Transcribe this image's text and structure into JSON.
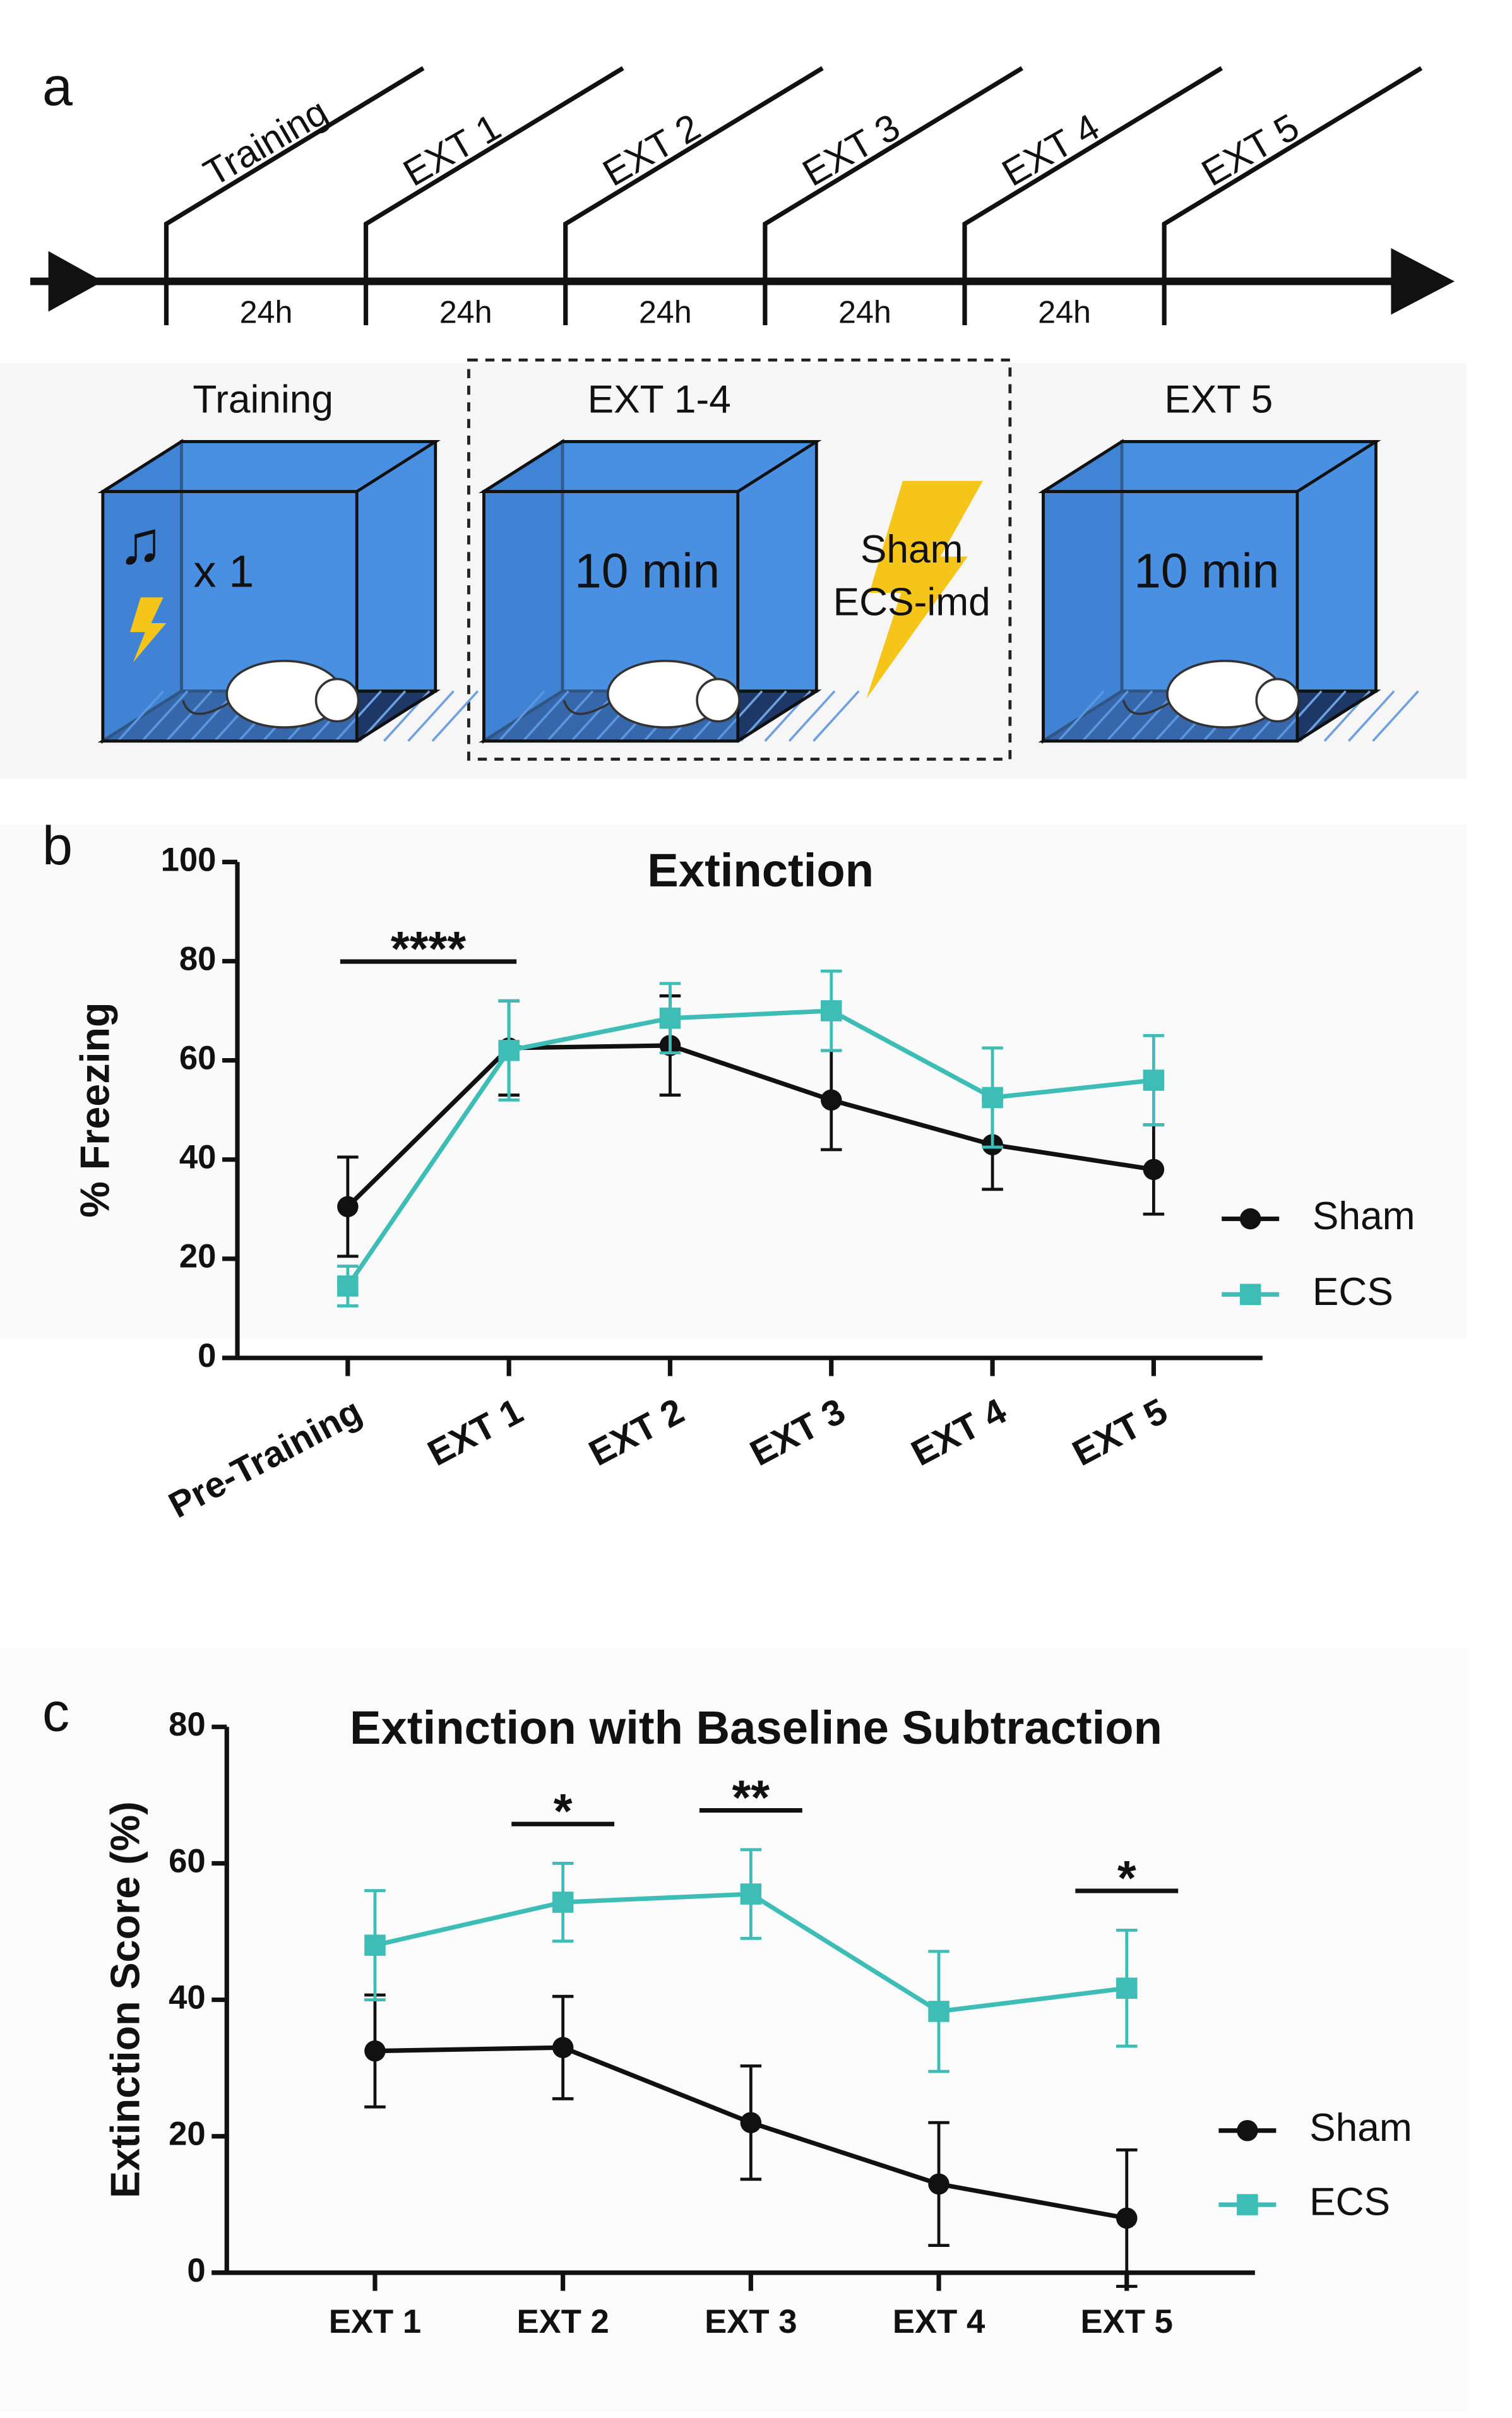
{
  "panel_labels": [
    "a",
    "b",
    "c"
  ],
  "timeline": {
    "days": [
      "Training",
      "EXT 1",
      "EXT 2",
      "EXT 3",
      "EXT 4",
      "EXT 5"
    ],
    "intervals": [
      "24h",
      "24h",
      "24h",
      "24h",
      "24h"
    ]
  },
  "stages": [
    {
      "title": "Training",
      "text": "x 1"
    },
    {
      "title": "EXT 1-4",
      "text": "10 min"
    },
    {
      "title": "EXT 5",
      "text": "10 min"
    }
  ],
  "treatment": [
    "Sham",
    "ECS-imd"
  ],
  "chart_data": [
    {
      "type": "line",
      "title": "Extinction",
      "y_label": "% Freezing",
      "categories": [
        "Pre-Training",
        "EXT 1",
        "EXT 2",
        "EXT 3",
        "EXT 4",
        "EXT 5"
      ],
      "series": [
        {
          "name": "Sham",
          "color": "#111111",
          "marker": "circle",
          "values": [
            30.5,
            62.5,
            63,
            52,
            43,
            38
          ],
          "errors": [
            10,
            9.5,
            10,
            10,
            9,
            9
          ]
        },
        {
          "name": "ECS",
          "color": "#3dbdb6",
          "marker": "square",
          "values": [
            14.5,
            62,
            68.5,
            70,
            52.5,
            56
          ],
          "errors": [
            4,
            10,
            7,
            8,
            10,
            9
          ]
        }
      ],
      "ylim": [
        0,
        100
      ],
      "yticks": [
        0,
        20,
        40,
        60,
        80,
        100
      ],
      "legend": "right",
      "annotations": [
        {
          "label": "****",
          "span": [
            0,
            1
          ]
        }
      ]
    },
    {
      "type": "line",
      "title": "Extinction with Baseline Subtraction",
      "y_label": "Extinction Score (%)",
      "categories": [
        "EXT 1",
        "EXT 2",
        "EXT 3",
        "EXT 4",
        "EXT 5"
      ],
      "series": [
        {
          "name": "Sham",
          "color": "#111111",
          "marker": "circle",
          "values": [
            32.5,
            33,
            22,
            13,
            8
          ],
          "errors": [
            8.2,
            7.5,
            8.3,
            9,
            10
          ]
        },
        {
          "name": "ECS",
          "color": "#3dbdb6",
          "marker": "square",
          "values": [
            48,
            54.3,
            55.5,
            38.3,
            41.7
          ],
          "errors": [
            8,
            5.7,
            6.5,
            8.8,
            8.5
          ]
        }
      ],
      "ylim": [
        0,
        80
      ],
      "yticks": [
        0,
        20,
        40,
        60,
        80
      ],
      "legend": "right",
      "annotations": [
        {
          "label": "*",
          "span": [
            1,
            1
          ]
        },
        {
          "label": "**",
          "span": [
            2,
            2
          ]
        },
        {
          "label": "*",
          "span": [
            4,
            4
          ]
        }
      ]
    }
  ]
}
